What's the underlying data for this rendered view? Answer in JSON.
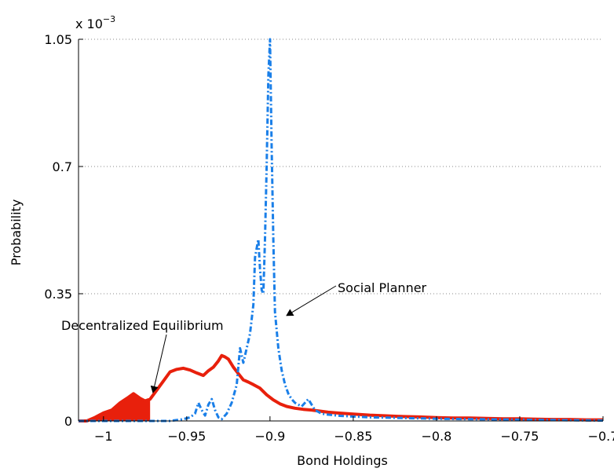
{
  "chart_data": {
    "type": "line",
    "title": "",
    "xlabel": "Bond Holdings",
    "ylabel": "Probability",
    "exponent_label": {
      "base": "x 10",
      "exponent": "−3"
    },
    "xlim": [
      -1.015,
      -0.7
    ],
    "ylim": [
      0,
      1.05
    ],
    "xticks": [
      -1,
      -0.95,
      -0.9,
      -0.85,
      -0.8,
      -0.75,
      -0.7
    ],
    "xtick_labels": [
      "−1",
      "−0.95",
      "−0.9",
      "−0.85",
      "−0.8",
      "−0.75",
      "−0.7"
    ],
    "yticks": [
      0,
      0.35,
      0.7,
      1.05
    ],
    "ytick_labels": [
      "0",
      "0.35",
      "0.7",
      "1.05"
    ],
    "grid": "horizontal-dotted",
    "series": [
      {
        "name": "Decentralized Equilibrium",
        "style": "solid",
        "color": "#e8200c",
        "x": [
          -1.015,
          -1.01,
          -1.005,
          -1.0,
          -0.995,
          -0.99,
          -0.985,
          -0.982,
          -0.978,
          -0.975,
          -0.972,
          -0.968,
          -0.964,
          -0.96,
          -0.956,
          -0.952,
          -0.948,
          -0.944,
          -0.94,
          -0.937,
          -0.934,
          -0.931,
          -0.929,
          -0.927,
          -0.925,
          -0.922,
          -0.919,
          -0.916,
          -0.913,
          -0.91,
          -0.906,
          -0.902,
          -0.898,
          -0.894,
          -0.89,
          -0.885,
          -0.88,
          -0.875,
          -0.87,
          -0.865,
          -0.86,
          -0.85,
          -0.84,
          -0.83,
          -0.82,
          -0.81,
          -0.8,
          -0.79,
          -0.78,
          -0.77,
          -0.76,
          -0.75,
          -0.74,
          -0.73,
          -0.72,
          -0.71,
          -0.7
        ],
        "values": [
          0.0,
          0.0,
          0.01,
          0.022,
          0.03,
          0.05,
          0.065,
          0.075,
          0.062,
          0.055,
          0.06,
          0.085,
          0.11,
          0.135,
          0.142,
          0.145,
          0.14,
          0.132,
          0.125,
          0.138,
          0.148,
          0.165,
          0.18,
          0.176,
          0.17,
          0.148,
          0.13,
          0.113,
          0.107,
          0.1,
          0.09,
          0.072,
          0.058,
          0.047,
          0.04,
          0.035,
          0.032,
          0.03,
          0.027,
          0.024,
          0.022,
          0.019,
          0.016,
          0.014,
          0.012,
          0.011,
          0.009,
          0.008,
          0.008,
          0.007,
          0.006,
          0.006,
          0.005,
          0.004,
          0.004,
          0.003,
          0.003
        ],
        "shaded_region": {
          "x_from": -1.015,
          "x_to": -0.972
        }
      },
      {
        "name": "Social Planner",
        "style": "dash-dot",
        "color": "#1a7fe8",
        "x": [
          -1.015,
          -0.96,
          -0.952,
          -0.948,
          -0.945,
          -0.943,
          -0.941,
          -0.939,
          -0.937,
          -0.935,
          -0.933,
          -0.931,
          -0.929,
          -0.926,
          -0.923,
          -0.92,
          -0.918,
          -0.916,
          -0.914,
          -0.912,
          -0.91,
          -0.909,
          -0.907,
          -0.906,
          -0.905,
          -0.904,
          -0.903,
          -0.902,
          -0.901,
          -0.9,
          -0.899,
          -0.898,
          -0.897,
          -0.895,
          -0.893,
          -0.891,
          -0.889,
          -0.887,
          -0.885,
          -0.883,
          -0.881,
          -0.879,
          -0.877,
          -0.875,
          -0.873,
          -0.871,
          -0.869,
          -0.866,
          -0.862,
          -0.858,
          -0.85,
          -0.84,
          -0.83,
          -0.82,
          -0.8,
          -0.78,
          -0.76,
          -0.74,
          -0.72,
          -0.7
        ],
        "values": [
          0.0,
          0.0,
          0.005,
          0.01,
          0.02,
          0.05,
          0.03,
          0.015,
          0.045,
          0.06,
          0.03,
          0.01,
          0.005,
          0.02,
          0.05,
          0.1,
          0.2,
          0.16,
          0.2,
          0.24,
          0.32,
          0.45,
          0.5,
          0.42,
          0.36,
          0.35,
          0.5,
          0.7,
          0.95,
          1.05,
          0.75,
          0.5,
          0.3,
          0.2,
          0.14,
          0.1,
          0.075,
          0.06,
          0.05,
          0.045,
          0.04,
          0.05,
          0.06,
          0.045,
          0.03,
          0.025,
          0.02,
          0.018,
          0.016,
          0.014,
          0.012,
          0.01,
          0.009,
          0.008,
          0.006,
          0.005,
          0.004,
          0.003,
          0.002,
          0.001
        ]
      }
    ],
    "annotations": [
      {
        "text": "Decentralized Equilibrium",
        "arrow_to": {
          "x": -0.975,
          "y": 0.1
        }
      },
      {
        "text": "Social Planner",
        "arrow_to": {
          "x": -0.89,
          "y": 0.29
        }
      }
    ]
  }
}
